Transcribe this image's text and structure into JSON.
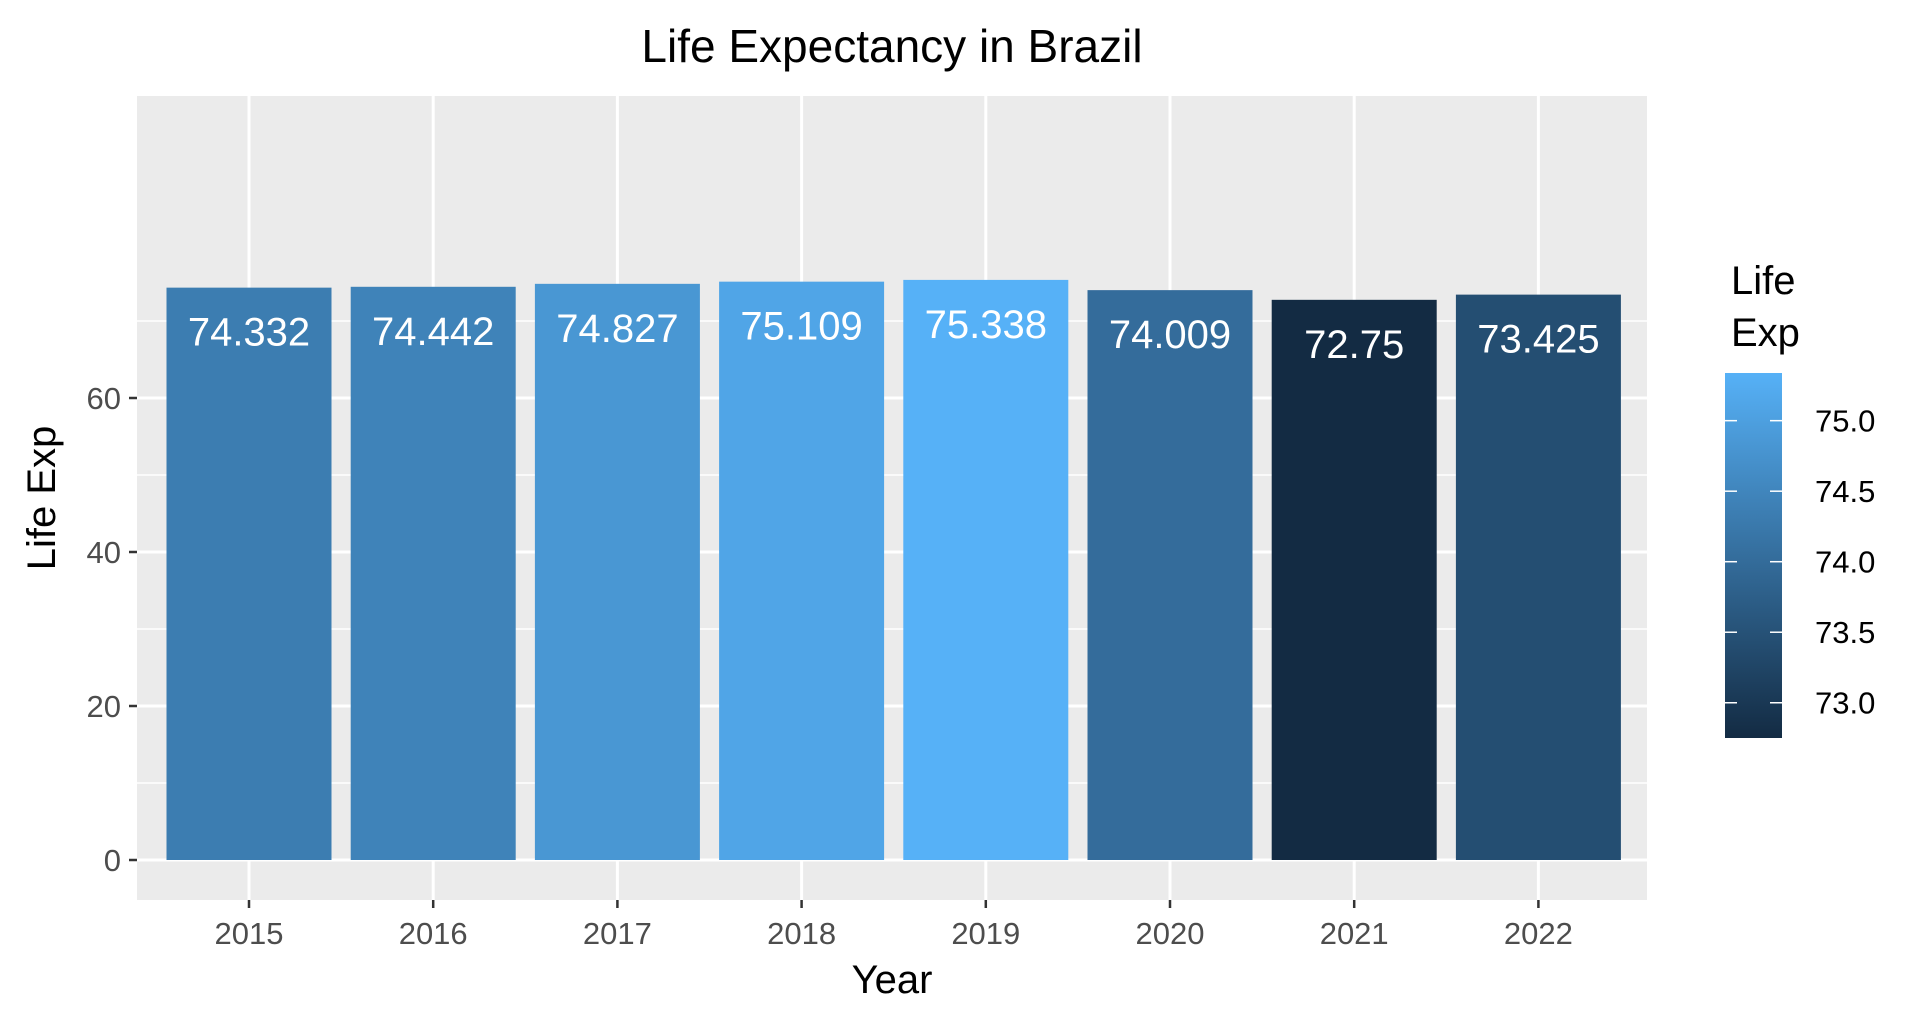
{
  "chart_data": {
    "type": "bar",
    "title": "Life Expectancy in Brazil",
    "xlabel": "Year",
    "ylabel": "Life Exp",
    "categories": [
      "2015",
      "2016",
      "2017",
      "2018",
      "2019",
      "2020",
      "2021",
      "2022"
    ],
    "values": [
      74.332,
      74.442,
      74.827,
      75.109,
      75.338,
      74.009,
      72.75,
      73.425
    ],
    "data_labels": [
      "74.332",
      "74.442",
      "74.827",
      "75.109",
      "75.338",
      "74.009",
      "72.75",
      "73.425"
    ],
    "ylim": [
      0,
      75.338
    ],
    "y_ticks": [
      0,
      20,
      40,
      60
    ],
    "y_tick_labels": [
      "0",
      "20",
      "40",
      "60"
    ],
    "grid": true,
    "legend": {
      "title_lines": [
        "Life",
        "Exp"
      ],
      "type": "colorbar",
      "placement": "right",
      "range": [
        72.75,
        75.338
      ],
      "ticks": [
        73.0,
        73.5,
        74.0,
        74.5,
        75.0
      ],
      "tick_labels": [
        "73.0",
        "73.5",
        "74.0",
        "74.5",
        "75.0"
      ],
      "low_color": "#132B43",
      "high_color": "#56B1F7"
    },
    "colors": {
      "panel_background": "#EBEBEB",
      "grid": "#FFFFFF",
      "data_label": "#FFFFFF",
      "axis_text": "#4D4D4D",
      "title_text": "#000000"
    }
  }
}
